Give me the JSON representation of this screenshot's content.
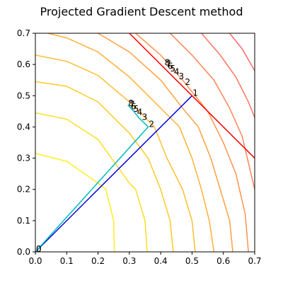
{
  "chart_data": {
    "type": "line",
    "title": "Projected Gradient Descent method",
    "xlabel": "",
    "ylabel": "",
    "xlim": [
      0,
      0.7
    ],
    "ylim": [
      0,
      0.7
    ],
    "xticks": [
      "0.0",
      "0.1",
      "0.2",
      "0.3",
      "0.4",
      "0.5",
      "0.6",
      "0.7"
    ],
    "yticks": [
      "0.0",
      "0.1",
      "0.2",
      "0.3",
      "0.4",
      "0.5",
      "0.6",
      "0.7"
    ],
    "grid": false,
    "contours": [
      {
        "level": 1,
        "color": "#ffee22",
        "points": [
          [
            0,
            0.315
          ],
          [
            0.1,
            0.29
          ],
          [
            0.2,
            0.22
          ],
          [
            0.225,
            0.2
          ],
          [
            0.25,
            0.1
          ],
          [
            0.252,
            0
          ]
        ]
      },
      {
        "level": 2,
        "color": "#ffde22",
        "points": [
          [
            0,
            0.445
          ],
          [
            0.1,
            0.425
          ],
          [
            0.2,
            0.36
          ],
          [
            0.3,
            0.22
          ],
          [
            0.32,
            0.2
          ],
          [
            0.35,
            0.1
          ],
          [
            0.357,
            0
          ]
        ]
      },
      {
        "level": 3,
        "color": "#ffcb26",
        "points": [
          [
            0,
            0.545
          ],
          [
            0.1,
            0.53
          ],
          [
            0.2,
            0.48
          ],
          [
            0.3,
            0.38
          ],
          [
            0.36,
            0.3
          ],
          [
            0.4,
            0.2
          ],
          [
            0.43,
            0.1
          ],
          [
            0.44,
            0
          ]
        ]
      },
      {
        "level": 4,
        "color": "#ffbe30",
        "points": [
          [
            0,
            0.63
          ],
          [
            0.1,
            0.61
          ],
          [
            0.2,
            0.565
          ],
          [
            0.3,
            0.48
          ],
          [
            0.38,
            0.4
          ],
          [
            0.42,
            0.3
          ],
          [
            0.47,
            0.2
          ],
          [
            0.5,
            0.1
          ],
          [
            0.51,
            0
          ]
        ]
      },
      {
        "level": 5,
        "color": "#ffb034",
        "points": [
          [
            0.04,
            0.7
          ],
          [
            0.1,
            0.685
          ],
          [
            0.2,
            0.64
          ],
          [
            0.3,
            0.56
          ],
          [
            0.4,
            0.46
          ],
          [
            0.46,
            0.4
          ],
          [
            0.5,
            0.3
          ],
          [
            0.53,
            0.2
          ],
          [
            0.555,
            0.1
          ],
          [
            0.57,
            0
          ]
        ]
      },
      {
        "level": 6,
        "color": "#ffa03e",
        "points": [
          [
            0.2,
            0.7
          ],
          [
            0.3,
            0.64
          ],
          [
            0.4,
            0.55
          ],
          [
            0.47,
            0.46
          ],
          [
            0.52,
            0.4
          ],
          [
            0.56,
            0.3
          ],
          [
            0.59,
            0.2
          ],
          [
            0.62,
            0.1
          ],
          [
            0.63,
            0
          ]
        ]
      },
      {
        "level": 7,
        "color": "#ff924a",
        "points": [
          [
            0.32,
            0.7
          ],
          [
            0.4,
            0.63
          ],
          [
            0.47,
            0.55
          ],
          [
            0.55,
            0.45
          ],
          [
            0.6,
            0.35
          ],
          [
            0.64,
            0.25
          ],
          [
            0.67,
            0.12
          ],
          [
            0.68,
            0
          ]
        ]
      },
      {
        "level": 8,
        "color": "#ff8355",
        "points": [
          [
            0.43,
            0.7
          ],
          [
            0.5,
            0.63
          ],
          [
            0.57,
            0.55
          ],
          [
            0.62,
            0.46
          ],
          [
            0.66,
            0.37
          ],
          [
            0.7,
            0.2
          ]
        ]
      },
      {
        "level": 9,
        "color": "#ff7560",
        "points": [
          [
            0.53,
            0.7
          ],
          [
            0.59,
            0.63
          ],
          [
            0.64,
            0.56
          ],
          [
            0.68,
            0.48
          ],
          [
            0.7,
            0.43
          ]
        ]
      },
      {
        "level": 10,
        "color": "#ff6a6a",
        "points": [
          [
            0.62,
            0.7
          ],
          [
            0.66,
            0.65
          ],
          [
            0.7,
            0.58
          ]
        ]
      }
    ],
    "series": [
      {
        "color": "#0000dd",
        "points": [
          [
            0,
            0
          ],
          [
            0.5,
            0.5
          ]
        ]
      },
      {
        "color": "#00bbbb",
        "points": [
          [
            0,
            0
          ],
          [
            0.36,
            0.4
          ],
          [
            0.33,
            0.43
          ],
          [
            0.31,
            0.455
          ],
          [
            0.3,
            0.465
          ],
          [
            0.295,
            0.47
          ]
        ]
      },
      {
        "color": "#ff0000",
        "points": [
          [
            0.3,
            0.7
          ],
          [
            0.7,
            0.3
          ]
        ]
      }
    ],
    "annotations": [
      {
        "text": "1",
        "x": 0.5,
        "y": 0.5
      },
      {
        "text": "2",
        "x": 0.475,
        "y": 0.535
      },
      {
        "text": "3",
        "x": 0.455,
        "y": 0.553
      },
      {
        "text": "4",
        "x": 0.44,
        "y": 0.567
      },
      {
        "text": "5",
        "x": 0.428,
        "y": 0.578
      },
      {
        "text": "6",
        "x": 0.42,
        "y": 0.586
      },
      {
        "text": "7",
        "x": 0.414,
        "y": 0.592
      },
      {
        "text": "8",
        "x": 0.41,
        "y": 0.597
      },
      {
        "text": "2",
        "x": 0.36,
        "y": 0.4
      },
      {
        "text": "3",
        "x": 0.338,
        "y": 0.423
      },
      {
        "text": "4",
        "x": 0.322,
        "y": 0.438
      },
      {
        "text": "5",
        "x": 0.311,
        "y": 0.449
      },
      {
        "text": "6",
        "x": 0.303,
        "y": 0.457
      },
      {
        "text": "7",
        "x": 0.298,
        "y": 0.463
      },
      {
        "text": "8",
        "x": 0.294,
        "y": 0.467
      },
      {
        "text": "0",
        "x": 0.0,
        "y": 0.0
      },
      {
        "text": "0",
        "x": 0.0,
        "y": 0.0
      }
    ]
  }
}
